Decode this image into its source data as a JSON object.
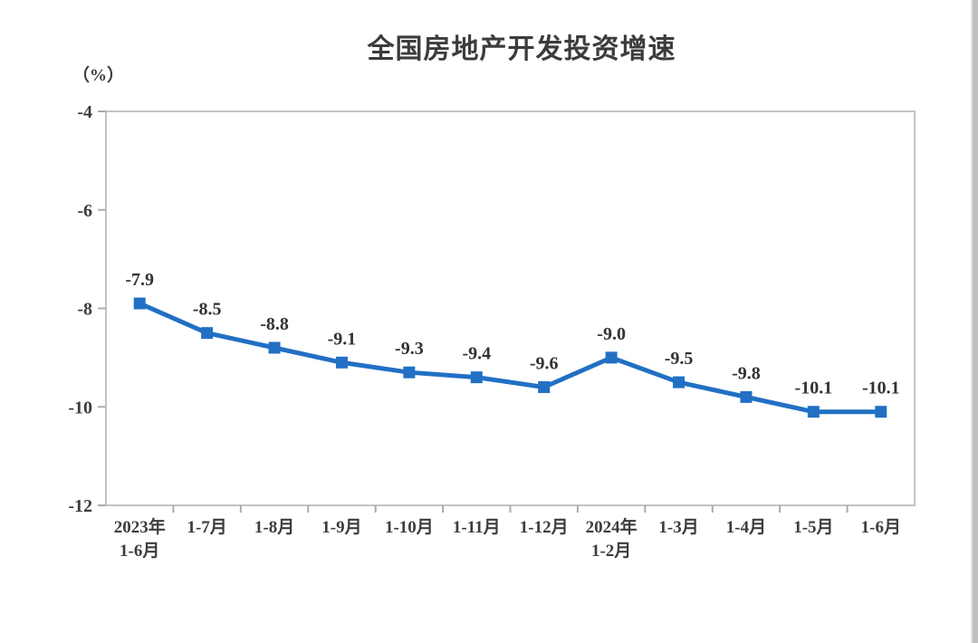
{
  "page": {
    "title": "全国房地产开发投资增速",
    "y_unit_label": "（%）"
  },
  "chart_data": {
    "type": "line",
    "title": "全国房地产开发投资增速",
    "ylabel": "（%）",
    "categories": [
      "2023年1-6月",
      "1-7月",
      "1-8月",
      "1-9月",
      "1-10月",
      "1-11月",
      "1-12月",
      "2024年1-2月",
      "1-3月",
      "1-4月",
      "1-5月",
      "1-6月"
    ],
    "x_tick_labels": [
      [
        "2023年",
        "1-6月"
      ],
      [
        "1-7月"
      ],
      [
        "1-8月"
      ],
      [
        "1-9月"
      ],
      [
        "1-10月"
      ],
      [
        "1-11月"
      ],
      [
        "1-12月"
      ],
      [
        "2024年",
        "1-2月"
      ],
      [
        "1-3月"
      ],
      [
        "1-4月"
      ],
      [
        "1-5月"
      ],
      [
        "1-6月"
      ]
    ],
    "values": [
      -7.9,
      -8.5,
      -8.8,
      -9.1,
      -9.3,
      -9.4,
      -9.6,
      -9.0,
      -9.5,
      -9.8,
      -10.1,
      -10.1
    ],
    "data_labels": [
      "-7.9",
      "-8.5",
      "-8.8",
      "-9.1",
      "-9.3",
      "-9.4",
      "-9.6",
      "-9.0",
      "-9.5",
      "-9.8",
      "-10.1",
      "-10.1"
    ],
    "ylim": [
      -12,
      -4
    ],
    "y_ticks": [
      "-4",
      "-6",
      "-8",
      "-10",
      "-12"
    ],
    "y_tick_values": [
      -4,
      -6,
      -8,
      -10,
      -12
    ],
    "grid": false,
    "legend": "none",
    "line_color": "#2170c4",
    "marker": "square",
    "axis_color": "#c3c3c3",
    "tick_color": "#ababab",
    "text_color": "#3d3d3d"
  }
}
